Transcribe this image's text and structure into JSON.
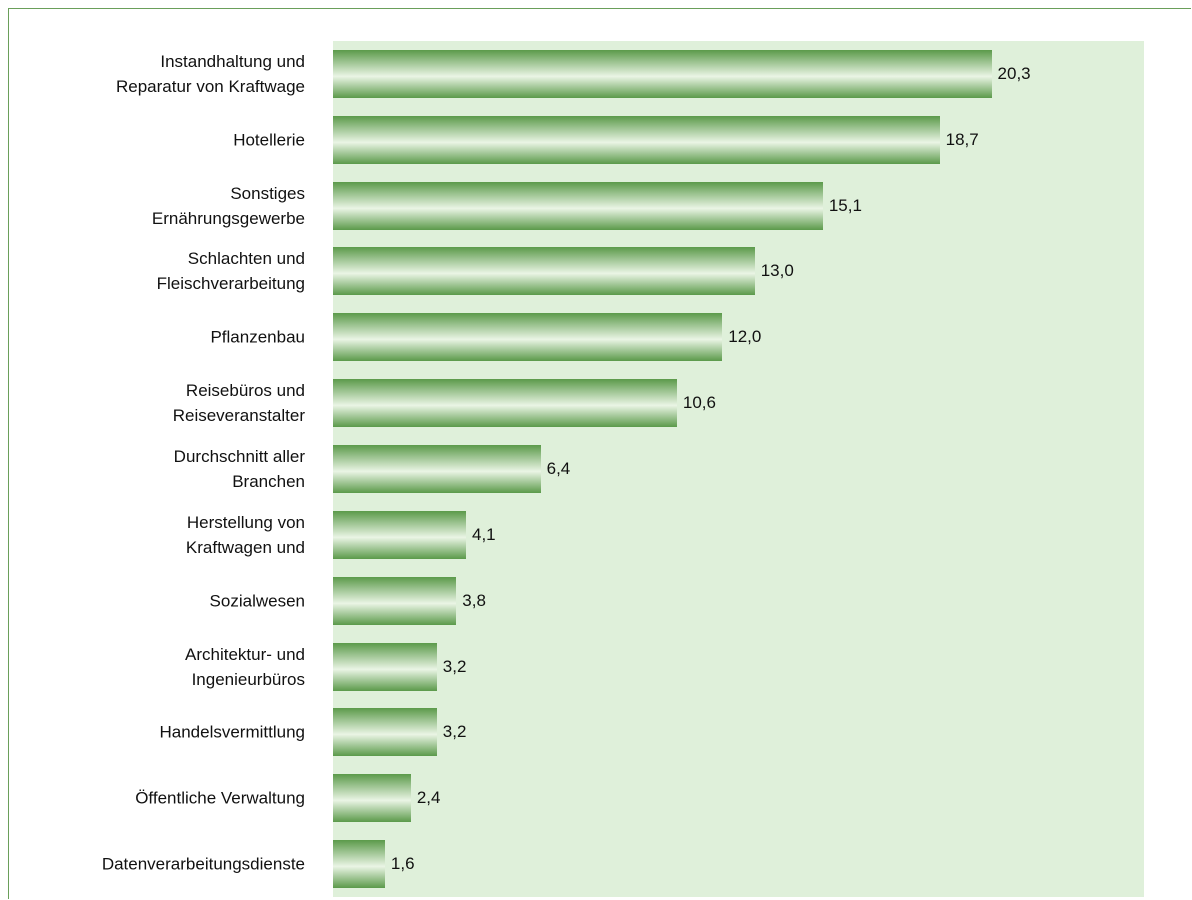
{
  "chart_data": {
    "type": "barh",
    "categories": [
      "Instandhaltung und\nReparatur von Kraftwage",
      "Hotellerie",
      "Sonstiges\nErnährungsgewerbe",
      "Schlachten und\nFleischverarbeitung",
      "Pflanzenbau",
      "Reisebüros und\nReiseveranstalter",
      "Durchschnitt aller\nBranchen",
      "Herstellung von\nKraftwagen und",
      "Sozialwesen",
      "Architektur- und\nIngenieurbüros",
      "Handelsvermittlung",
      "Öffentliche Verwaltung",
      "Datenverarbeitungsdienste"
    ],
    "values": [
      20.3,
      18.7,
      15.1,
      13.0,
      12.0,
      10.6,
      6.4,
      4.1,
      3.8,
      3.2,
      3.2,
      2.4,
      1.6
    ],
    "value_labels": [
      "20,3",
      "18,7",
      "15,1",
      "13,0",
      "12,0",
      "10,6",
      "6,4",
      "4,1",
      "3,8",
      "3,2",
      "3,2",
      "2,4",
      "1,6"
    ],
    "xlim": [
      0,
      25
    ],
    "color": "#5b9a4a",
    "plot_background": "#dff0da"
  }
}
